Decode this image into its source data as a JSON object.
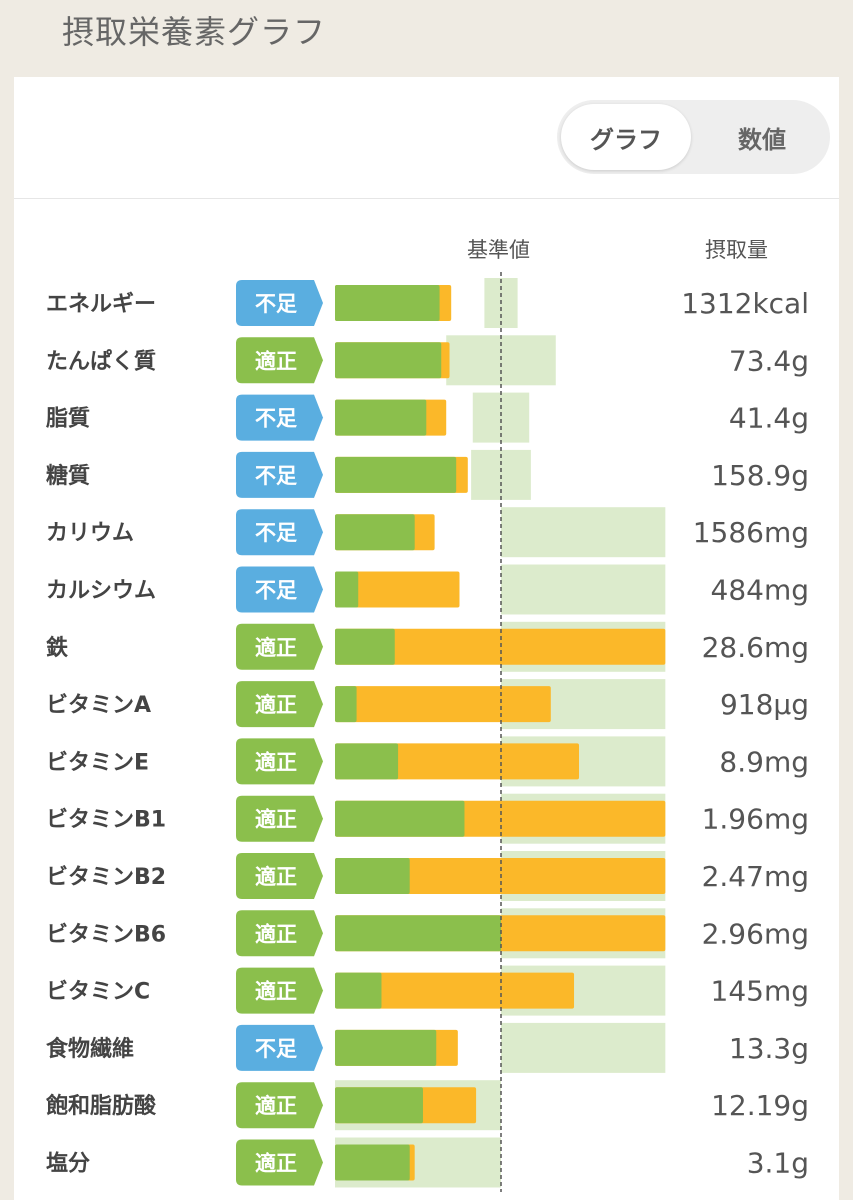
{
  "header": {
    "title": "摂取栄養素グラフ"
  },
  "toggle": {
    "graph_label": "グラフ",
    "numeric_label": "数値"
  },
  "columns": {
    "reference": "基準値",
    "intake": "摂取量"
  },
  "colors": {
    "badge_low": "#5aaee0",
    "badge_ok": "#8bbf4c",
    "bar_green": "#8bbf4c",
    "bar_orange": "#fbb829",
    "range_fill": "#dcebcc"
  },
  "status_labels": {
    "low": "不足",
    "ok": "適正"
  },
  "chart_data": {
    "type": "bar",
    "unit_note": "percent of reference value (100 = reference line)",
    "reference_value": 100,
    "rows": [
      {
        "name": "エネルギー",
        "status": "low",
        "value_text": "1312kcal",
        "green_pct": 63,
        "total_pct": 70,
        "range_pct": [
          90,
          110
        ]
      },
      {
        "name": "たんぱく質",
        "status": "ok",
        "value_text": "73.4g",
        "green_pct": 64,
        "total_pct": 69,
        "range_pct": [
          67,
          133
        ]
      },
      {
        "name": "脂質",
        "status": "low",
        "value_text": "41.4g",
        "green_pct": 55,
        "total_pct": 67,
        "range_pct": [
          83,
          117
        ]
      },
      {
        "name": "糖質",
        "status": "low",
        "value_text": "158.9g",
        "green_pct": 73,
        "total_pct": 80,
        "range_pct": [
          82,
          118
        ]
      },
      {
        "name": "カリウム",
        "status": "low",
        "value_text": "1586mg",
        "green_pct": 48,
        "total_pct": 60,
        "range_pct": [
          100,
          199
        ]
      },
      {
        "name": "カルシウム",
        "status": "low",
        "value_text": "484mg",
        "green_pct": 14,
        "total_pct": 75,
        "range_pct": [
          100,
          199
        ]
      },
      {
        "name": "鉄",
        "status": "ok",
        "value_text": "28.6mg",
        "green_pct": 36,
        "total_pct": 199,
        "range_pct": [
          100,
          199
        ]
      },
      {
        "name": "ビタミンA",
        "status": "ok",
        "value_text": "918μg",
        "green_pct": 13,
        "total_pct": 130,
        "range_pct": [
          100,
          199
        ]
      },
      {
        "name": "ビタミンE",
        "status": "ok",
        "value_text": "8.9mg",
        "green_pct": 38,
        "total_pct": 147,
        "range_pct": [
          100,
          199
        ]
      },
      {
        "name": "ビタミンB1",
        "status": "ok",
        "value_text": "1.96mg",
        "green_pct": 78,
        "total_pct": 199,
        "range_pct": [
          100,
          199
        ]
      },
      {
        "name": "ビタミンB2",
        "status": "ok",
        "value_text": "2.47mg",
        "green_pct": 45,
        "total_pct": 199,
        "range_pct": [
          100,
          199
        ]
      },
      {
        "name": "ビタミンB6",
        "status": "ok",
        "value_text": "2.96mg",
        "green_pct": 100,
        "total_pct": 199,
        "range_pct": [
          100,
          199
        ]
      },
      {
        "name": "ビタミンC",
        "status": "ok",
        "value_text": "145mg",
        "green_pct": 28,
        "total_pct": 144,
        "range_pct": [
          100,
          199
        ]
      },
      {
        "name": "食物繊維",
        "status": "low",
        "value_text": "13.3g",
        "green_pct": 61,
        "total_pct": 74,
        "range_pct": [
          100,
          199
        ]
      },
      {
        "name": "飽和脂肪酸",
        "status": "ok",
        "value_text": "12.19g",
        "green_pct": 53,
        "total_pct": 85,
        "range_pct": [
          0,
          100
        ]
      },
      {
        "name": "塩分",
        "status": "ok",
        "value_text": "3.1g",
        "green_pct": 45,
        "total_pct": 48,
        "range_pct": [
          0,
          100
        ]
      }
    ]
  }
}
